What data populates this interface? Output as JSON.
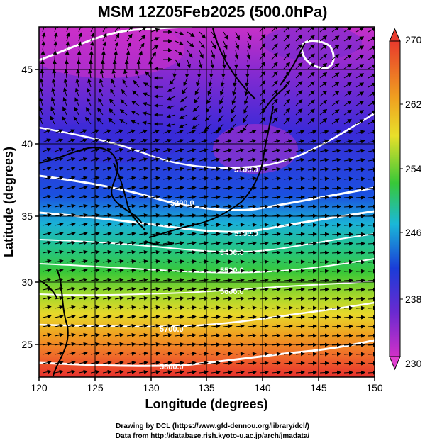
{
  "title": "MSM 12Z05Feb2025 (500.0hPa)",
  "xlabel": "Longitude (degrees)",
  "ylabel": "Latitude  (degrees)",
  "x_ticks": [
    "120",
    "125",
    "130",
    "135",
    "140",
    "145",
    "150"
  ],
  "y_ticks": [
    "45",
    "40",
    "35",
    "30",
    "25"
  ],
  "colorbar": {
    "ticks": [
      "270",
      "262",
      "254",
      "246",
      "238",
      "230"
    ],
    "min": 230,
    "max": 270
  },
  "contours": [
    {
      "label": "5100.0"
    },
    {
      "label": "5200.0"
    },
    {
      "label": "5300.0"
    },
    {
      "label": "5400.0"
    },
    {
      "label": "5500.0"
    },
    {
      "label": "5600.0"
    },
    {
      "label": "5700.0"
    },
    {
      "label": "5800.0"
    }
  ],
  "footer": {
    "line1": "Drawing by DCL (https://www.gfd-dennou.org/library/dcl/)",
    "line2": "Data from http://database.rish.kyoto-u.ac.jp/arch/jmadata/"
  },
  "colors": {
    "warm": "#e8302c",
    "orange": "#f08a1a",
    "yellow": "#e8e02a",
    "green": "#2ec44a",
    "cyan": "#1ab8d8",
    "blue": "#1a3cd8",
    "purple": "#7a2ad0",
    "magenta": "#d030c8"
  }
}
